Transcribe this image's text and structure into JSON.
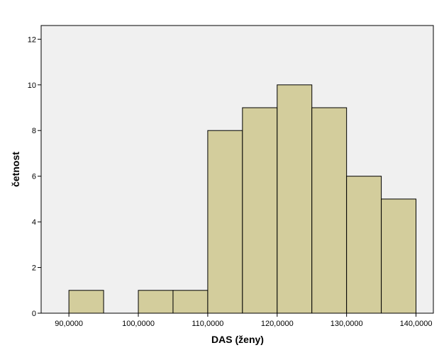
{
  "chart_data": {
    "type": "bar",
    "subtype": "histogram",
    "xlabel": "DAS (ženy)",
    "ylabel": "četnost",
    "bins": [
      {
        "start": 90000,
        "end": 95000,
        "count": 1
      },
      {
        "start": 100000,
        "end": 105000,
        "count": 1
      },
      {
        "start": 105000,
        "end": 110000,
        "count": 1
      },
      {
        "start": 110000,
        "end": 115000,
        "count": 8
      },
      {
        "start": 115000,
        "end": 120000,
        "count": 9
      },
      {
        "start": 120000,
        "end": 125000,
        "count": 10
      },
      {
        "start": 125000,
        "end": 130000,
        "count": 9
      },
      {
        "start": 130000,
        "end": 135000,
        "count": 6
      },
      {
        "start": 135000,
        "end": 140000,
        "count": 5
      }
    ],
    "x_ticks": [
      90000,
      100000,
      110000,
      120000,
      130000,
      140000
    ],
    "x_tick_labels": [
      "90,0000",
      "100,0000",
      "110,0000",
      "120,0000",
      "130,0000",
      "140,0000"
    ],
    "y_ticks": [
      0,
      2,
      4,
      6,
      8,
      10,
      12
    ],
    "y_tick_labels": [
      "0",
      "2",
      "4",
      "6",
      "8",
      "10",
      "12"
    ],
    "xlim": [
      86000,
      142500
    ],
    "ylim": [
      0,
      12.6
    ],
    "grid": false,
    "colors": {
      "bar_fill": "#d3cd9c",
      "bar_stroke": "#000000",
      "plot_background": "#f0f0f0",
      "frame": "#000000"
    }
  }
}
